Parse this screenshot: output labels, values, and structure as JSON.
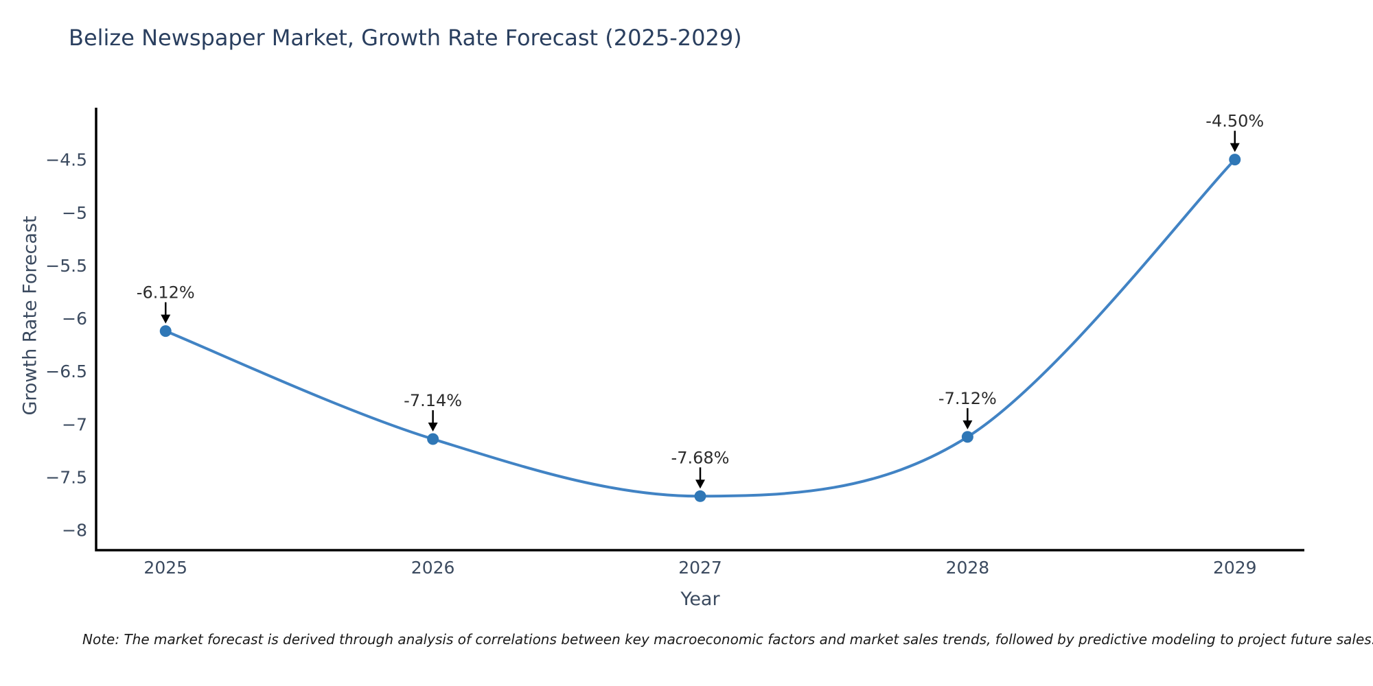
{
  "chart_data": {
    "type": "line",
    "title": "Belize Newspaper Market, Growth Rate Forecast (2025-2029)",
    "xlabel": "Year",
    "ylabel": "Growth Rate Forecast",
    "x": [
      2025,
      2026,
      2027,
      2028,
      2029
    ],
    "xtick_labels": [
      "2025",
      "2026",
      "2027",
      "2028",
      "2029"
    ],
    "series": [
      {
        "name": "Growth Rate Forecast",
        "values": [
          -6.12,
          -7.14,
          -7.68,
          -7.12,
          -4.5
        ],
        "point_labels": [
          "-6.12%",
          "-7.14%",
          "-7.68%",
          "-7.12%",
          "-4.50%"
        ]
      }
    ],
    "yticks": [
      -4.5,
      -5,
      -5.5,
      -6,
      -6.5,
      -7,
      -7.5,
      -8
    ],
    "ytick_labels": [
      "−4.5",
      "−5",
      "−5.5",
      "−6",
      "−6.5",
      "−7",
      "−7.5",
      "−8"
    ],
    "xlim": [
      2024.74,
      2029.26
    ],
    "ylim": [
      -8.19,
      -4.01
    ],
    "grid": false,
    "legend": false,
    "line_shape": "spline",
    "colors": {
      "line": "#4183c4",
      "marker": "#2f77b6",
      "axis": "#000000",
      "arrow": "#000000",
      "tick_text": "#3b4a5f",
      "annotation_text": "#2b2b2b",
      "title_text": "#2a3f5f"
    }
  },
  "note": "Note: The market forecast is derived through analysis of correlations between key macroeconomic factors and market sales trends, followed by predictive modeling to project future sales."
}
